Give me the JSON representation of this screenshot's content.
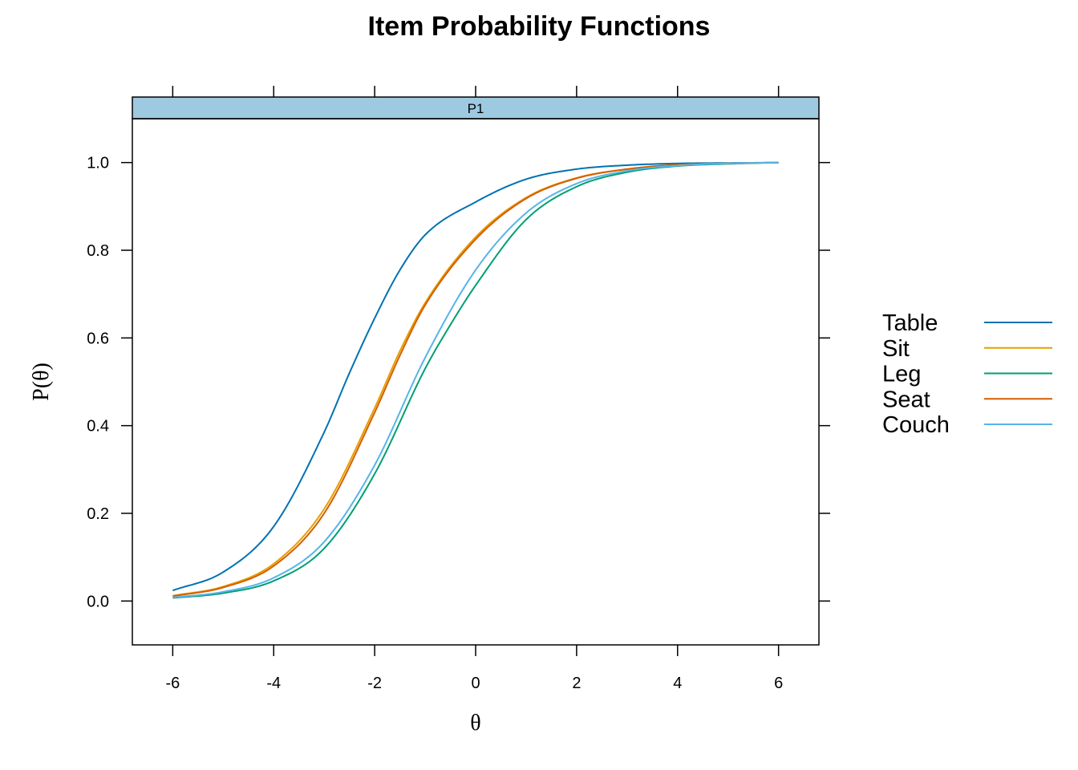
{
  "chart_data": {
    "type": "line",
    "title": "Item Probability Functions",
    "panel_label": "P1",
    "xlabel": "θ",
    "ylabel": "P(θ)",
    "xlim": [
      -6.8,
      6.8
    ],
    "ylim": [
      -0.1,
      1.1
    ],
    "x_ticks": [
      -6,
      -4,
      -2,
      0,
      2,
      4,
      6
    ],
    "x_tick_labels": [
      "-6",
      "-4",
      "-2",
      "0",
      "2",
      "4",
      "6"
    ],
    "y_ticks": [
      0.0,
      0.2,
      0.4,
      0.6,
      0.8,
      1.0
    ],
    "y_tick_labels": [
      "0.0",
      "0.2",
      "0.4",
      "0.6",
      "0.8",
      "1.0"
    ],
    "legend_position": "right",
    "series": [
      {
        "name": "Table",
        "color": "#0072B2",
        "x": [
          -6,
          -5,
          -4,
          -3,
          -2.5,
          -2,
          -1.5,
          -1,
          0,
          1,
          2,
          3,
          4,
          5,
          6
        ],
        "y": [
          0.024,
          0.066,
          0.17,
          0.385,
          0.52,
          0.645,
          0.755,
          0.835,
          0.91,
          0.962,
          0.985,
          0.994,
          0.998,
          0.999,
          1.0
        ]
      },
      {
        "name": "Sit",
        "color": "#E69F00",
        "x": [
          -6,
          -5,
          -4,
          -3,
          -2,
          -1.5,
          -1,
          0,
          1,
          2,
          3,
          4,
          5,
          6
        ],
        "y": [
          0.012,
          0.033,
          0.085,
          0.21,
          0.44,
          0.57,
          0.68,
          0.83,
          0.92,
          0.965,
          0.985,
          0.995,
          0.998,
          1.0
        ]
      },
      {
        "name": "Leg",
        "color": "#009E73",
        "x": [
          -6,
          -5,
          -4,
          -3,
          -2,
          -1,
          -0.5,
          0,
          1,
          2,
          3,
          4,
          5,
          6
        ],
        "y": [
          0.007,
          0.018,
          0.046,
          0.12,
          0.29,
          0.53,
          0.63,
          0.72,
          0.87,
          0.945,
          0.978,
          0.992,
          0.997,
          1.0
        ]
      },
      {
        "name": "Seat",
        "color": "#D55E00",
        "x": [
          -6,
          -5,
          -4,
          -3,
          -2,
          -1.5,
          -1,
          0,
          1,
          2,
          3,
          4,
          5,
          6
        ],
        "y": [
          0.011,
          0.031,
          0.08,
          0.2,
          0.43,
          0.56,
          0.675,
          0.825,
          0.918,
          0.964,
          0.985,
          0.995,
          0.998,
          1.0
        ]
      },
      {
        "name": "Couch",
        "color": "#56B4E9",
        "x": [
          -6,
          -5,
          -4,
          -3,
          -2,
          -1,
          0,
          1,
          2,
          3,
          4,
          5,
          6
        ],
        "y": [
          0.008,
          0.021,
          0.053,
          0.135,
          0.31,
          0.555,
          0.755,
          0.885,
          0.952,
          0.981,
          0.993,
          0.998,
          1.0
        ]
      }
    ]
  }
}
